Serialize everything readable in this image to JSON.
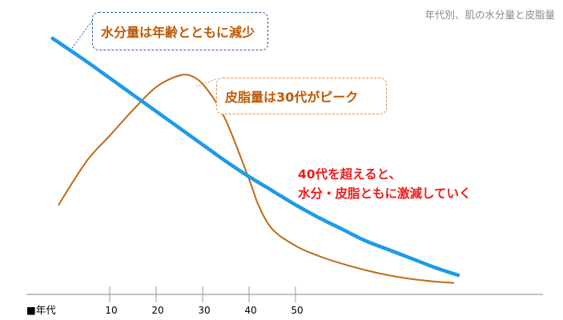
{
  "title": "年代別、肌の水分量と皮脂量",
  "callouts": {
    "water": "水分量は年齢とともに減少",
    "sebum": "皮脂量は30代がピーク"
  },
  "note": {
    "line1": "40代を超えると、",
    "line2": "水分・皮脂ともに激減していく"
  },
  "axis": {
    "x_label": "■年代",
    "ticks": [
      "10",
      "20",
      "30",
      "40",
      "50"
    ]
  },
  "colors": {
    "water": "#1e9be8",
    "sebum": "#c26a16",
    "note": "#ee1b1b",
    "water_callout_border": "#3355aa",
    "sebum_callout_border": "#d9944c"
  },
  "chart_data": {
    "type": "line",
    "title": "年代別、肌の水分量と皮脂量",
    "xlabel": "年代",
    "ylabel": "",
    "x_ticks": [
      10,
      20,
      30,
      40,
      50
    ],
    "xlim": [
      -3,
      87
    ],
    "ylim": [
      0,
      100
    ],
    "series": [
      {
        "name": "水分量",
        "color": "#1e9be8",
        "x": [
          -2.3,
          5,
          10,
          15,
          20,
          25,
          30,
          35,
          40,
          45,
          50,
          55,
          60,
          65,
          70,
          75,
          80,
          85
        ],
        "y": [
          100,
          91,
          84.5,
          78,
          71.5,
          65,
          58.5,
          52,
          46,
          40.5,
          35,
          30,
          25.5,
          21,
          17.5,
          14,
          10.5,
          7.5
        ]
      },
      {
        "name": "皮脂量",
        "color": "#c26a16",
        "x": [
          -1,
          5,
          10,
          15,
          20,
          25,
          28,
          31,
          35,
          40,
          42,
          45,
          50,
          55,
          60,
          65,
          70,
          75,
          80,
          84
        ],
        "y": [
          35,
          52,
          62,
          72,
          81,
          85.5,
          85,
          80,
          68,
          45,
          35,
          25.5,
          19,
          15,
          12,
          9.5,
          7.5,
          6,
          5,
          4.5
        ]
      }
    ]
  }
}
